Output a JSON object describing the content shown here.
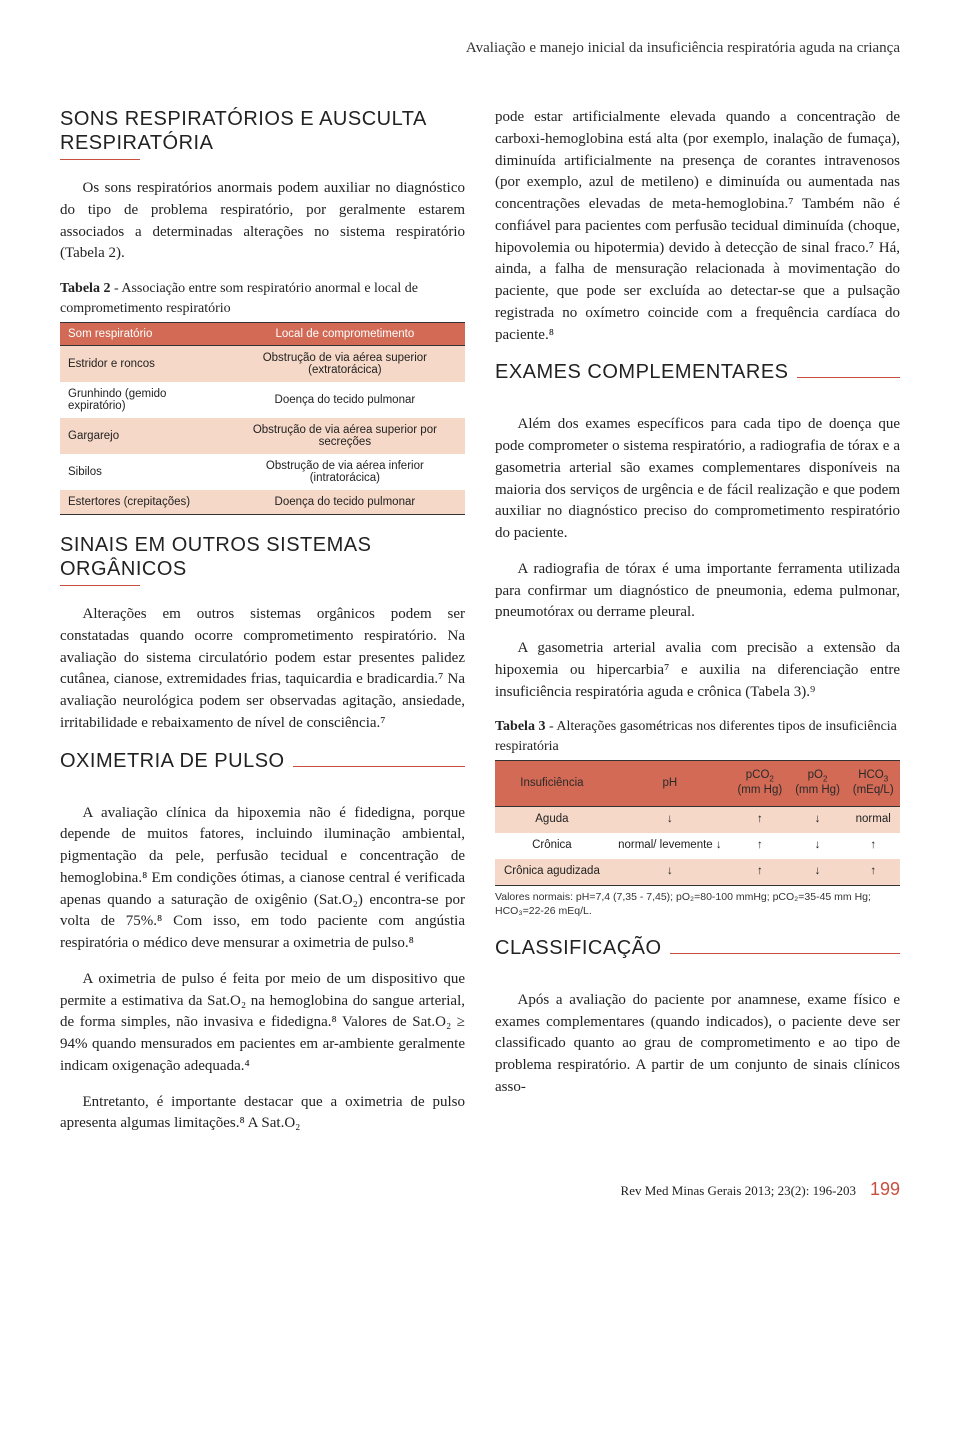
{
  "running_header": "Avaliação e manejo inicial da insuficiência respiratória aguda na criança",
  "left": {
    "h1": "SONS RESPIRATÓRIOS E AUSCULTA RESPIRATÓRIA",
    "p1": "Os sons respiratórios anormais podem auxiliar no diagnóstico do tipo de problema respiratório, por geralmente estarem associados a determinadas alterações no sistema respiratório (Tabela 2).",
    "table2": {
      "title_bold": "Tabela 2",
      "title_rest": " - Associação entre som respiratório anormal e local de comprometimento respiratório",
      "head_left": "Som respiratório",
      "head_right": "Local de comprometimento",
      "rows": [
        {
          "a": "Estridor e roncos",
          "b": "Obstrução de via aérea superior (extratorácica)",
          "peach": true
        },
        {
          "a": "Grunhindo (gemido expiratório)",
          "b": "Doença do tecido pulmonar",
          "peach": false
        },
        {
          "a": "Gargarejo",
          "b": "Obstrução de via aérea superior por secreções",
          "peach": true
        },
        {
          "a": "Sibilos",
          "b": "Obstrução de via aérea inferior (intratorácica)",
          "peach": false
        },
        {
          "a": "Estertores (crepitações)",
          "b": "Doença do tecido pulmonar",
          "peach": true
        }
      ]
    },
    "h2": "SINAIS EM OUTROS SISTEMAS ORGÂNICOS",
    "p2": "Alterações em outros sistemas orgânicos podem ser constatadas quando ocorre comprometimento respiratório. Na avaliação do sistema circulatório podem estar presentes palidez cutânea, cianose, extremidades frias, taquicardia e bradicardia.⁷ Na avaliação neurológica podem ser observadas agitação, ansiedade, irritabilidade e rebaixamento de nível de consciência.⁷",
    "h3": "OXIMETRIA DE PULSO",
    "p3": "A avaliação clínica da hipoxemia não é fidedigna, porque depende de muitos fatores, incluindo iluminação ambiental, pigmentação da pele, perfusão tecidual e concentração de hemoglobina.⁸ Em condições ótimas, a cianose central é verificada apenas quando a saturação de oxigênio (Sat.O₂) encontra-se por volta de 75%.⁸ Com isso, em todo paciente com angústia respiratória o médico deve mensurar a oximetria de pulso.⁸",
    "p3b": "A oximetria de pulso é feita por meio de um dispositivo que permite a estimativa da Sat.O₂ na hemoglobina do sangue arterial, de forma simples, não invasiva e fidedigna.⁸ Valores de Sat.O₂ ≥ 94% quando mensurados em pacientes em ar-ambiente geralmente indicam oxigenação adequada.⁴",
    "p3c": "Entretanto, é importante destacar que a oximetria de pulso apresenta algumas limitações.⁸ A Sat.O₂"
  },
  "right": {
    "p4": "pode estar artificialmente elevada quando a concentração de carboxi-hemoglobina está alta (por exemplo, inalação de fumaça), diminuída artificialmente na presença de corantes intravenosos (por exemplo, azul de metileno) e diminuída ou aumentada nas concentrações elevadas de meta-hemoglobina.⁷ Também não é confiável para pacientes com perfusão tecidual diminuída (choque, hipovolemia ou hipotermia) devido à detecção de sinal fraco.⁷ Há, ainda, a falha de mensuração relacionada à movimentação do paciente, que pode ser excluída ao detectar-se que a pulsação registrada no oxímetro coincide com a frequência cardíaca do paciente.⁸",
    "h4": "EXAMES COMPLEMENTARES",
    "p5": "Além dos exames específicos para cada tipo de doença que pode comprometer o sistema respiratório, a radiografia de tórax e a gasometria arterial são exames complementares disponíveis na maioria dos serviços de urgência e de fácil realização e que podem auxiliar no diagnóstico preciso do comprometimento respiratório do paciente.",
    "p5b": "A radiografia de tórax é uma importante ferramenta utilizada para confirmar um diagnóstico de pneumonia, edema pulmonar, pneumotórax ou derrame pleural.",
    "p5c": "A gasometria arterial avalia com precisão a extensão da hipoxemia ou hipercarbia⁷ e auxilia na diferenciação entre insuficiência respiratória aguda e crônica (Tabela 3).⁹",
    "table3": {
      "title_bold": "Tabela 3",
      "title_rest": " - Alterações gasométricas nos diferentes tipos de insuficiência respiratória",
      "cols": [
        "Insuficiência",
        "pH",
        "pCO₂\n(mm Hg)",
        "pO₂\n(mm Hg)",
        "HCO₃\n(mEq/L)"
      ],
      "rows": [
        {
          "c": [
            "Aguda",
            "↓",
            "↑",
            "↓",
            "normal"
          ],
          "peach": true
        },
        {
          "c": [
            "Crônica",
            "normal/ levemente ↓",
            "↑",
            "↓",
            "↑"
          ],
          "peach": false
        },
        {
          "c": [
            "Crônica agudizada",
            "↓",
            "↑",
            "↓",
            "↑"
          ],
          "peach": true
        }
      ],
      "footnote": "Valores normais: pH=7,4 (7,35 - 7,45); pO₂=80-100 mmHg; pCO₂=35-45 mm Hg; HCO₃=22-26 mEq/L."
    },
    "h5": "CLASSIFICAÇÃO",
    "p6": "Após a avaliação do paciente por anamnese, exame físico e exames complementares (quando indicados), o paciente deve ser classificado quanto ao grau de comprometimento e ao tipo de problema respiratório. A partir de um conjunto de sinais clínicos asso-"
  },
  "footer": {
    "journal": "Rev Med Minas Gerais 2013; 23(2): 196-203",
    "page": "199"
  },
  "colors": {
    "accent": "#c94f3e",
    "table_header": "#d26a55",
    "peach": "#f5d8c7"
  }
}
